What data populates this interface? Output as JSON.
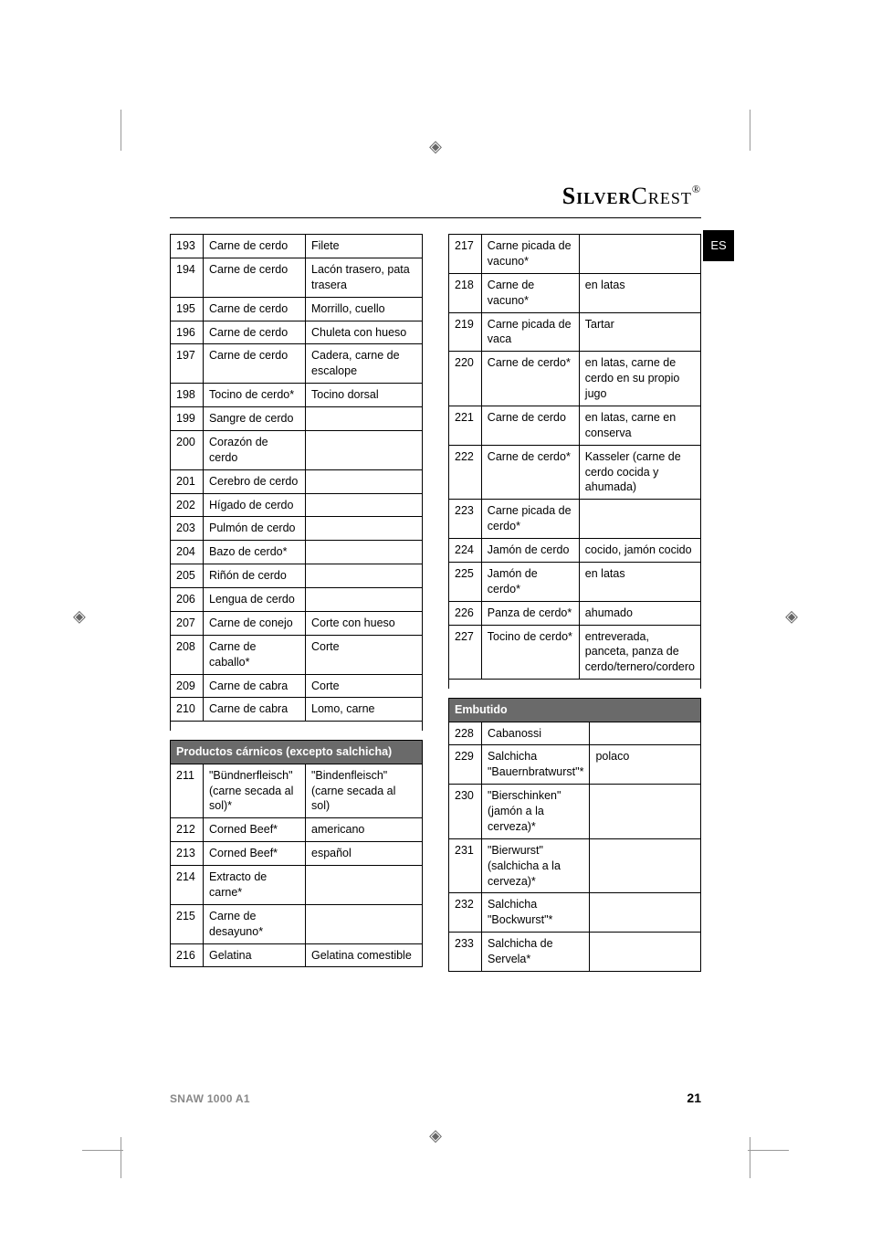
{
  "brand": {
    "part1": "Silver",
    "part2": "Crest",
    "reg": "®"
  },
  "langTab": "ES",
  "footer": {
    "model": "SNAW 1000 A1",
    "page": "21"
  },
  "left": {
    "rowsA": [
      {
        "n": "193",
        "a": "Carne de cerdo",
        "b": "Filete"
      },
      {
        "n": "194",
        "a": "Carne de cerdo",
        "b": "Lacón trasero, pata trasera"
      },
      {
        "n": "195",
        "a": "Carne de cerdo",
        "b": "Morrillo, cuello"
      },
      {
        "n": "196",
        "a": "Carne de cerdo",
        "b": "Chuleta con hueso"
      },
      {
        "n": "197",
        "a": "Carne de cerdo",
        "b": "Cadera, carne de escalope"
      },
      {
        "n": "198",
        "a": "Tocino de cerdo*",
        "b": "Tocino dorsal"
      },
      {
        "n": "199",
        "a": "Sangre de cerdo",
        "b": ""
      },
      {
        "n": "200",
        "a": "Corazón de cerdo",
        "b": ""
      },
      {
        "n": "201",
        "a": "Cerebro de cerdo",
        "b": ""
      },
      {
        "n": "202",
        "a": "Hígado de cerdo",
        "b": ""
      },
      {
        "n": "203",
        "a": "Pulmón de cerdo",
        "b": ""
      },
      {
        "n": "204",
        "a": "Bazo de cerdo*",
        "b": ""
      },
      {
        "n": "205",
        "a": "Riñón de cerdo",
        "b": ""
      },
      {
        "n": "206",
        "a": "Lengua de cerdo",
        "b": ""
      },
      {
        "n": "207",
        "a": "Carne de conejo",
        "b": "Corte con hueso"
      },
      {
        "n": "208",
        "a": "Carne de caballo*",
        "b": "Corte"
      },
      {
        "n": "209",
        "a": "Carne de cabra",
        "b": "Corte"
      },
      {
        "n": "210",
        "a": "Carne de cabra",
        "b": "Lomo, carne"
      }
    ],
    "headerB": "Productos cárnicos (excepto salchicha)",
    "rowsB": [
      {
        "n": "211",
        "a": "\"Bündnerfleisch\" (carne secada al sol)*",
        "b": "\"Bindenfleisch\" (carne secada al sol)"
      },
      {
        "n": "212",
        "a": "Corned Beef*",
        "b": "americano"
      },
      {
        "n": "213",
        "a": "Corned Beef*",
        "b": "español"
      },
      {
        "n": "214",
        "a": "Extracto de carne*",
        "b": ""
      },
      {
        "n": "215",
        "a": "Carne de desayuno*",
        "b": ""
      },
      {
        "n": "216",
        "a": "Gelatina",
        "b": "Gelatina comestible"
      }
    ]
  },
  "right": {
    "rowsA": [
      {
        "n": "217",
        "a": "Carne picada de vacuno*",
        "b": ""
      },
      {
        "n": "218",
        "a": "Carne de vacuno*",
        "b": "en latas"
      },
      {
        "n": "219",
        "a": "Carne picada de vaca",
        "b": "Tartar"
      },
      {
        "n": "220",
        "a": "Carne de cerdo*",
        "b": "en latas, carne de cerdo en su propio jugo"
      },
      {
        "n": "221",
        "a": "Carne de cerdo",
        "b": "en latas, carne en conserva"
      },
      {
        "n": "222",
        "a": "Carne de cerdo*",
        "b": "Kasseler (carne de cerdo cocida y ahumada)"
      },
      {
        "n": "223",
        "a": "Carne picada de cerdo*",
        "b": ""
      },
      {
        "n": "224",
        "a": "Jamón de cerdo",
        "b": "cocido, jamón cocido"
      },
      {
        "n": "225",
        "a": "Jamón de cerdo*",
        "b": "en latas"
      },
      {
        "n": "226",
        "a": "Panza de cerdo*",
        "b": "ahumado"
      },
      {
        "n": "227",
        "a": "Tocino de cerdo*",
        "b": "entreverada, panceta, panza de cerdo/ternero/cordero"
      }
    ],
    "headerB": "Embutido",
    "rowsB": [
      {
        "n": "228",
        "a": "Cabanossi",
        "b": ""
      },
      {
        "n": "229",
        "a": "Salchicha \"Bauernbratwurst\"*",
        "b": "polaco"
      },
      {
        "n": "230",
        "a": "\"Bierschinken\" (jamón a la cerveza)*",
        "b": ""
      },
      {
        "n": "231",
        "a": "\"Bierwurst\" (salchicha a la cerveza)*",
        "b": ""
      },
      {
        "n": "232",
        "a": "Salchicha \"Bockwurst\"*",
        "b": ""
      },
      {
        "n": "233",
        "a": "Salchicha de Servela*",
        "b": ""
      }
    ]
  }
}
